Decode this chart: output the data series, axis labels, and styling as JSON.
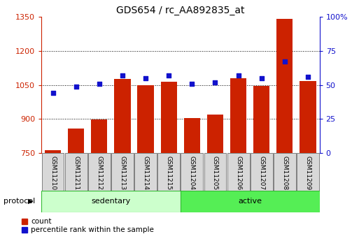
{
  "title": "GDS654 / rc_AA892835_at",
  "samples": [
    "GSM11210",
    "GSM11211",
    "GSM11212",
    "GSM11213",
    "GSM11214",
    "GSM11215",
    "GSM11204",
    "GSM11205",
    "GSM11206",
    "GSM11207",
    "GSM11208",
    "GSM11209"
  ],
  "groups": [
    "sedentary",
    "sedentary",
    "sedentary",
    "sedentary",
    "sedentary",
    "sedentary",
    "active",
    "active",
    "active",
    "active",
    "active",
    "active"
  ],
  "count_values": [
    762,
    858,
    898,
    1075,
    1048,
    1063,
    905,
    918,
    1080,
    1045,
    1340,
    1068
  ],
  "percentile_values": [
    44,
    49,
    51,
    57,
    55,
    57,
    51,
    52,
    57,
    55,
    67,
    56
  ],
  "ylim_left": [
    750,
    1350
  ],
  "ylim_right": [
    0,
    100
  ],
  "yticks_left": [
    750,
    900,
    1050,
    1200,
    1350
  ],
  "yticks_right": [
    0,
    25,
    50,
    75,
    100
  ],
  "bar_color": "#cc2200",
  "dot_color": "#1111cc",
  "sedentary_color": "#ccffcc",
  "active_color": "#55ee55",
  "protocol_label": "protocol",
  "legend_count": "count",
  "legend_percentile": "percentile rank within the sample",
  "title_fontsize": 10,
  "tick_fontsize": 8,
  "sample_fontsize": 6.5
}
